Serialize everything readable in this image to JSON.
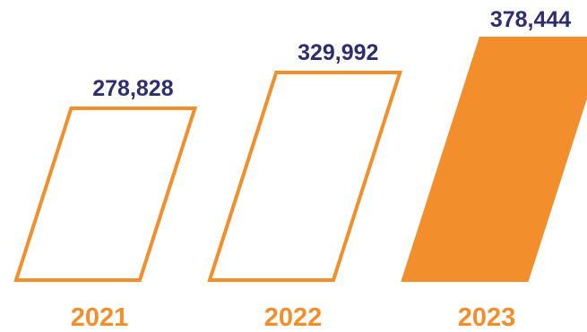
{
  "chart_data": {
    "type": "bar",
    "categories": [
      "2021",
      "2022",
      "2023"
    ],
    "values": [
      278828,
      329992,
      378444
    ],
    "value_labels": [
      "278,828",
      "329,992",
      "378,444"
    ],
    "styles": [
      "outline",
      "outline",
      "filled"
    ],
    "ylim": [
      0,
      400000
    ],
    "title": "",
    "xlabel": "",
    "ylabel": "",
    "grid": false
  },
  "colors": {
    "bar": "#F28E2B",
    "value_label": "#2E2E6E",
    "year_label": "#F28E2B",
    "background": "#FFFFFF"
  }
}
